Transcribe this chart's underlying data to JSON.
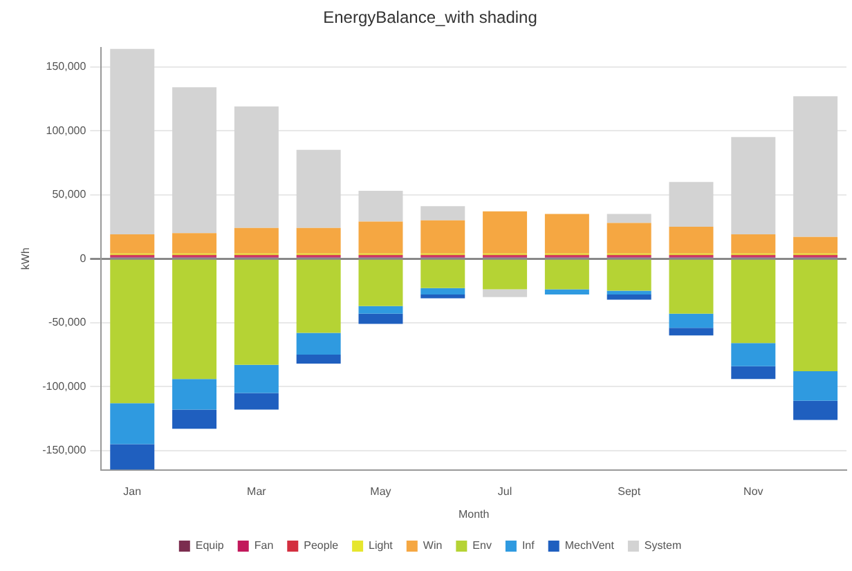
{
  "chart_data": {
    "type": "bar",
    "title": "EnergyBalance_with shading",
    "xlabel": "Month",
    "ylabel": "kWh",
    "stacked": true,
    "grid": "y",
    "legend": "bottom",
    "categories": [
      "Jan",
      null,
      "Mar",
      null,
      "May",
      null,
      "Jul",
      null,
      "Sept",
      null,
      "Nov",
      null
    ],
    "ylim": [
      -165000,
      165000
    ],
    "yticks": [
      {
        "value": -150000,
        "label": "-150,000"
      },
      {
        "value": -100000,
        "label": "-100,000"
      },
      {
        "value": -50000,
        "label": "-50,000"
      },
      0,
      {
        "value": 50000,
        "label": "50,000"
      },
      {
        "value": 100000,
        "label": "100,000"
      },
      {
        "value": 150000,
        "label": "150,000"
      }
    ],
    "series": [
      {
        "name": "Equip",
        "color": "#7b2d4f",
        "values": [
          1000,
          1000,
          1000,
          1000,
          1000,
          1000,
          1000,
          1000,
          1000,
          1000,
          1000,
          1000
        ]
      },
      {
        "name": "Fan",
        "color": "#c2185b",
        "values": [
          1000,
          1000,
          1000,
          1000,
          1000,
          1000,
          1000,
          1000,
          1000,
          1000,
          1000,
          1000
        ]
      },
      {
        "name": "People",
        "color": "#d32f3f",
        "values": [
          1000,
          1000,
          1000,
          1000,
          1000,
          1000,
          1000,
          1000,
          1000,
          1000,
          1000,
          1000
        ]
      },
      {
        "name": "Light",
        "color": "#e6e62e",
        "values": [
          1000,
          1000,
          1000,
          1000,
          1000,
          1000,
          1000,
          1000,
          1000,
          1000,
          1000,
          1000
        ]
      },
      {
        "name": "Win",
        "color": "#f5a742",
        "values": [
          15000,
          16000,
          20000,
          20000,
          25000,
          26000,
          33000,
          31000,
          24000,
          21000,
          15000,
          13000
        ]
      },
      {
        "name": "Env",
        "color": "#b5d334",
        "values": [
          -113000,
          -94000,
          -83000,
          -58000,
          -37000,
          -23000,
          -24000,
          -24000,
          -25000,
          -43000,
          -66000,
          -88000
        ]
      },
      {
        "name": "Inf",
        "color": "#2f9ae0",
        "values": [
          -32000,
          -24000,
          -22000,
          -17000,
          -6000,
          -5000,
          null,
          -4000,
          -3000,
          -11000,
          -18000,
          -23000
        ]
      },
      {
        "name": "MechVent",
        "color": "#1f5fbf",
        "values": [
          -20000,
          -15000,
          -13000,
          -7000,
          -8000,
          -3000,
          null,
          null,
          -4000,
          -6000,
          -10000,
          -15000
        ]
      },
      {
        "name": "System",
        "color": "#d3d3d3",
        "values": [
          145000,
          114000,
          95000,
          61000,
          24000,
          11000,
          -6000,
          null,
          7000,
          35000,
          76000,
          110000
        ]
      }
    ]
  }
}
